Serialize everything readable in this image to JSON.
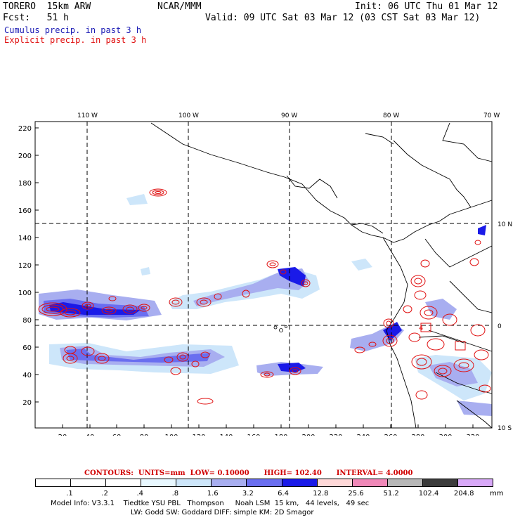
{
  "header": {
    "model": "TORERO  15km ARW",
    "org": "NCAR/MMM",
    "init": "Init: 06 UTC Thu 01 Mar 12",
    "fcst": "Fcst:   51 h",
    "valid": "Valid: 09 UTC Sat 03 Mar 12 (03 CST Sat 03 Mar 12)"
  },
  "legend": {
    "cumulus": "Cumulus precip. in past 3 h",
    "explicit": "Explicit precip. in past 3 h"
  },
  "map": {
    "lon_labels": [
      "110 W",
      "100 W",
      "90 W",
      "80 W",
      "70 W"
    ],
    "lat_labels": [
      "10 N",
      "0",
      "10 S"
    ],
    "x_ticks": [
      "20",
      "40",
      "60",
      "80",
      "100",
      "120",
      "140",
      "160",
      "180",
      "200",
      "220",
      "240",
      "260",
      "280",
      "300",
      "320"
    ],
    "y_ticks": [
      "20",
      "40",
      "60",
      "80",
      "100",
      "120",
      "140",
      "160",
      "180",
      "200",
      "220"
    ],
    "cell_label": "4"
  },
  "contours": {
    "title": "CONTOURS:",
    "units": "UNITS=mm",
    "low": "LOW= 0.10000",
    "high": "HIGH= 102.40",
    "interval": "INTERVAL= 4.0000"
  },
  "colorbar": {
    "labels": [
      ".1",
      ".2",
      ".4",
      ".8",
      "1.6",
      "3.2",
      "6.4",
      "12.8",
      "25.6",
      "51.2",
      "102.4",
      "204.8"
    ],
    "unit": "mm",
    "colors": [
      "#ffffff",
      "#ffffff",
      "#ffffff",
      "#e8f8ff",
      "#cde6fa",
      "#a8aef0",
      "#6a6ef0",
      "#1a1ae8",
      "#ffd8d8",
      "#f088b8",
      "#b8b8b8",
      "#3c3c3c",
      "#d8a8f8"
    ]
  },
  "footer": {
    "line1": "Model Info: V3.3.1    Tiedtke YSU PBL   Thompson     Noah LSM  15 km,   44 levels,   49 sec",
    "line2": "LW: Godd SW: Goddard DIFF: simple KM: 2D Smagor"
  }
}
